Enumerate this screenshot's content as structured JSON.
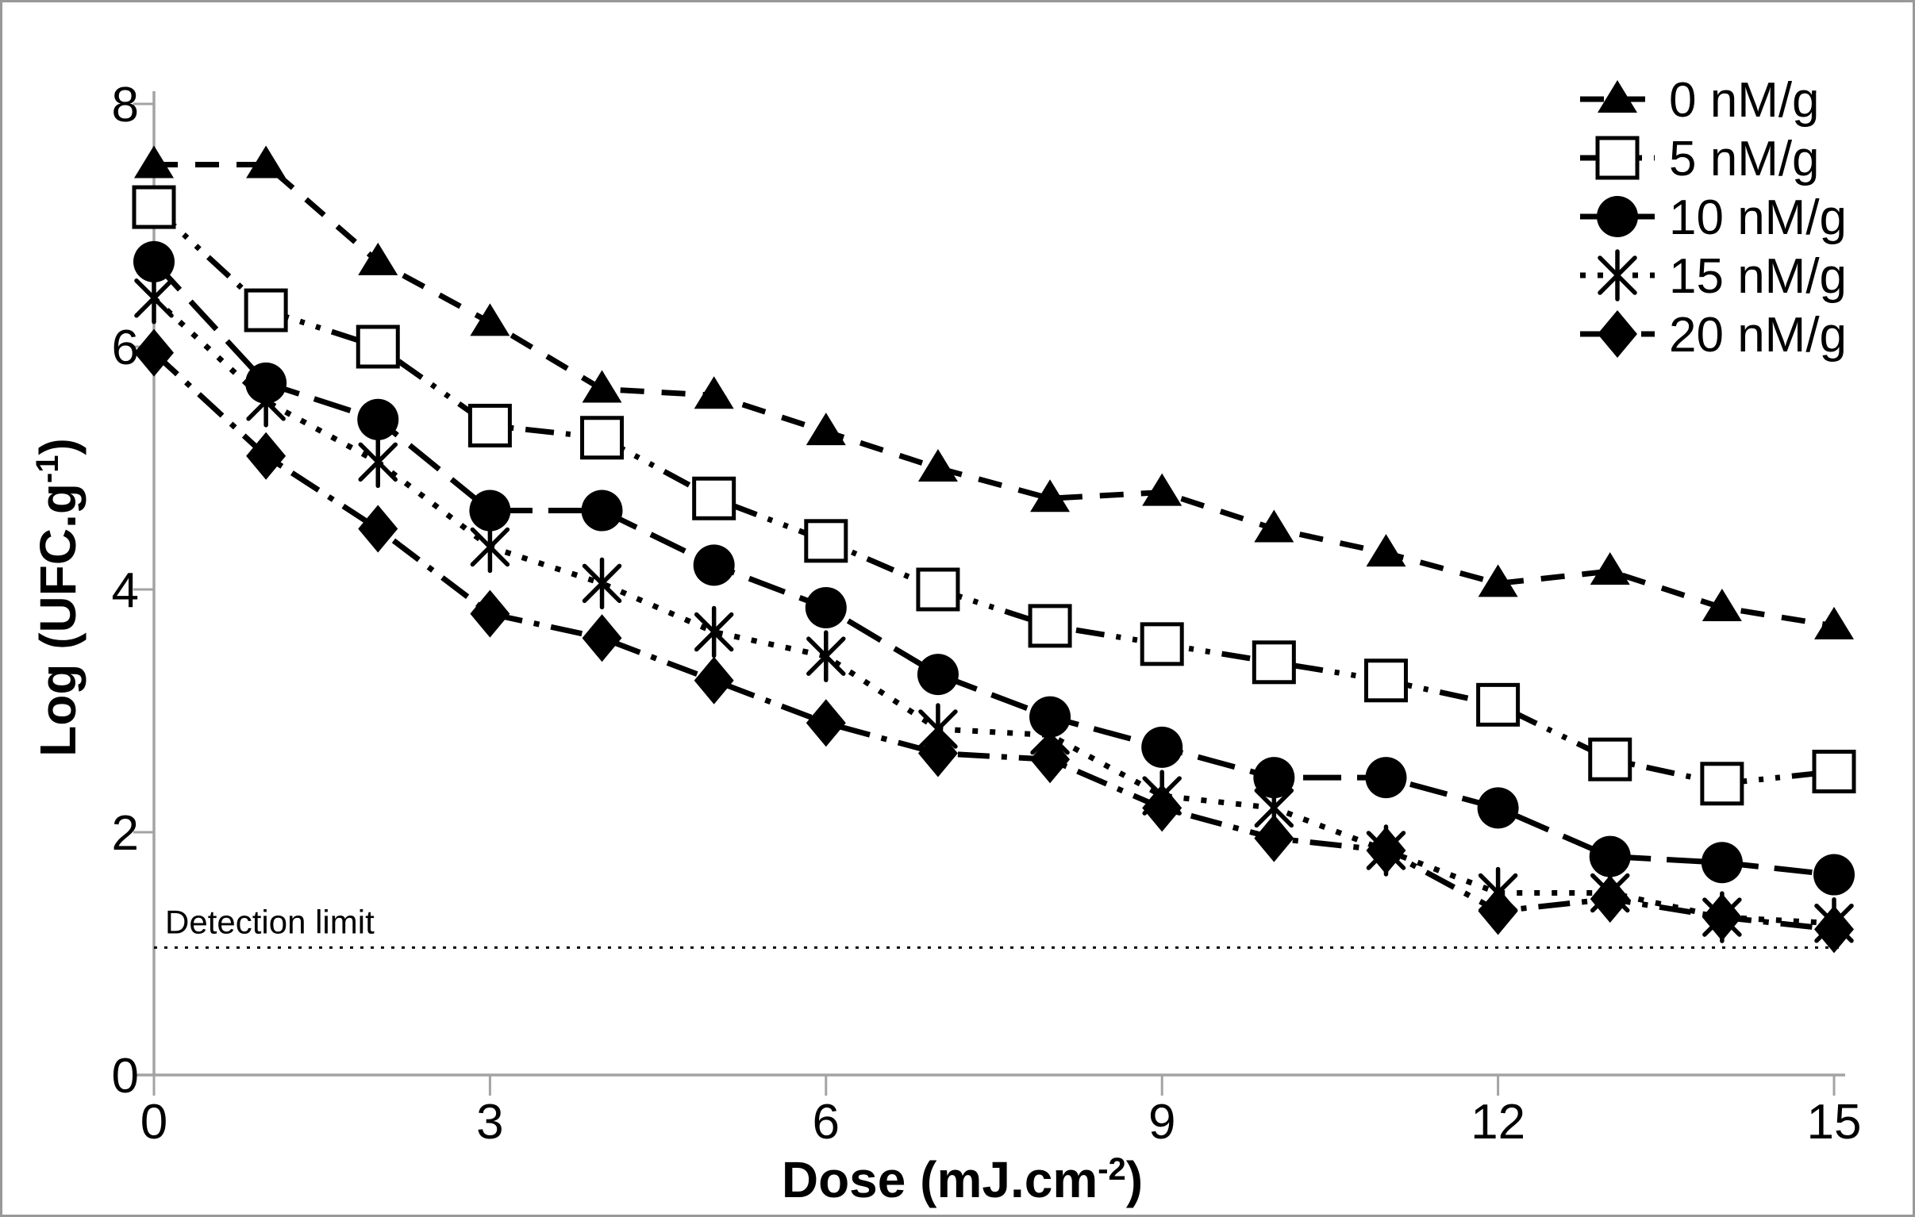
{
  "figure": {
    "background": "#ffffff",
    "border_color": "#999999",
    "axis_color": "#a3a3a3",
    "data_color": "#000000"
  },
  "chart_data": {
    "type": "line",
    "title": "",
    "xlabel": {
      "prefix": "Dose (mJ.cm",
      "sup": "-2",
      "suffix": ")"
    },
    "ylabel": {
      "prefix": "Log (UFC.g",
      "sup": "-1",
      "suffix": ")"
    },
    "x": [
      0,
      1,
      2,
      3,
      4,
      5,
      6,
      7,
      8,
      9,
      10,
      11,
      12,
      13,
      14,
      15
    ],
    "xlim": [
      0,
      15
    ],
    "x_ticks": [
      0,
      3,
      6,
      9,
      12,
      15
    ],
    "ylim": [
      0,
      8
    ],
    "y_ticks": [
      0,
      2,
      4,
      6,
      8
    ],
    "grid": false,
    "legend_position": "top-right",
    "series": [
      {
        "name": "0 nM/g",
        "marker": "triangle-filled",
        "line_style": "dash",
        "values": [
          7.5,
          7.5,
          6.7,
          6.2,
          5.65,
          5.6,
          5.3,
          5.0,
          4.75,
          4.8,
          4.5,
          4.3,
          4.05,
          4.15,
          3.85,
          3.7
        ]
      },
      {
        "name": "5 nM/g",
        "marker": "square-open",
        "line_style": "dash-dot-dot",
        "values": [
          7.15,
          6.3,
          6.0,
          5.35,
          5.25,
          4.75,
          4.4,
          4.0,
          3.7,
          3.55,
          3.4,
          3.25,
          3.05,
          2.6,
          2.4,
          2.5
        ]
      },
      {
        "name": "10 nM/g",
        "marker": "circle-filled",
        "line_style": "long-dash",
        "values": [
          6.7,
          5.7,
          5.4,
          4.65,
          4.65,
          4.2,
          3.85,
          3.3,
          2.95,
          2.7,
          2.45,
          2.45,
          2.2,
          1.8,
          1.75,
          1.65
        ]
      },
      {
        "name": "15 nM/g",
        "marker": "asterisk",
        "line_style": "dot",
        "values": [
          6.4,
          5.55,
          5.05,
          4.35,
          4.05,
          3.65,
          3.45,
          2.85,
          2.8,
          2.3,
          2.2,
          1.85,
          1.5,
          1.5,
          1.3,
          1.25
        ]
      },
      {
        "name": "20 nM/g",
        "marker": "diamond-filled",
        "line_style": "dash-dot",
        "values": [
          5.95,
          5.1,
          4.5,
          3.8,
          3.6,
          3.25,
          2.9,
          2.65,
          2.6,
          2.2,
          1.95,
          1.85,
          1.35,
          1.45,
          1.3,
          1.2
        ]
      }
    ],
    "annotations": [
      {
        "label": "Detection limit",
        "y": 1.05,
        "style": "fine-dot"
      }
    ]
  }
}
